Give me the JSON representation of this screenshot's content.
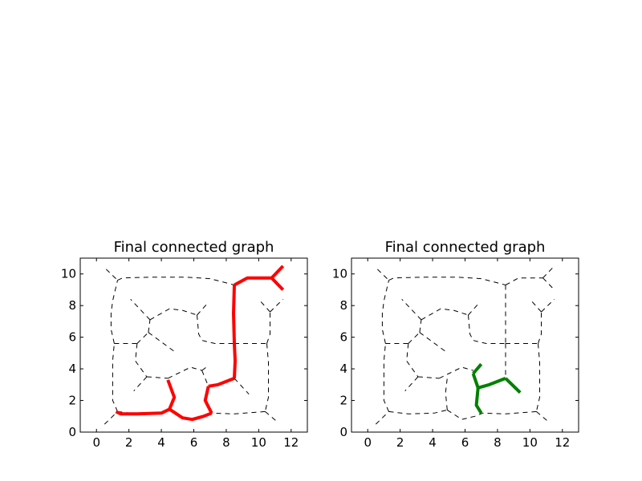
{
  "chart_data": [
    {
      "type": "line",
      "title": "Final connected graph",
      "xlim": [
        -1,
        13
      ],
      "ylim": [
        0,
        11
      ],
      "xticks": [
        0,
        2,
        4,
        6,
        8,
        10,
        12
      ],
      "yticks": [
        0,
        2,
        4,
        6,
        8,
        10
      ],
      "background_edges": [
        [
          [
            0.5,
            0.5
          ],
          [
            1.3,
            1.3
          ]
        ],
        [
          [
            1.3,
            1.3
          ],
          [
            2.5,
            1.15
          ],
          [
            4.1,
            1.2
          ],
          [
            4.3,
            1.4
          ]
        ],
        [
          [
            1.3,
            1.3
          ],
          [
            1,
            2
          ],
          [
            1,
            3.5
          ],
          [
            1,
            4.5
          ],
          [
            1.1,
            5.6
          ]
        ],
        [
          [
            1.1,
            5.6
          ],
          [
            0.9,
            6.5
          ],
          [
            0.9,
            7.5
          ],
          [
            1.0,
            8.3
          ],
          [
            1.3,
            9.6
          ]
        ],
        [
          [
            1.3,
            9.6
          ],
          [
            1.6,
            9.75
          ],
          [
            3.5,
            9.8
          ],
          [
            5.5,
            9.8
          ],
          [
            7.0,
            9.7
          ],
          [
            8.5,
            9.3
          ]
        ],
        [
          [
            0.6,
            10.3
          ],
          [
            1.3,
            9.6
          ]
        ],
        [
          [
            1.1,
            5.6
          ],
          [
            2.5,
            5.6
          ]
        ],
        [
          [
            2.5,
            5.6
          ],
          [
            2.4,
            4.5
          ],
          [
            3.1,
            3.5
          ]
        ],
        [
          [
            3.1,
            3.5
          ],
          [
            2.3,
            2.6
          ]
        ],
        [
          [
            3.1,
            3.5
          ],
          [
            4.4,
            3.4
          ]
        ],
        [
          [
            4.4,
            3.4
          ],
          [
            5.0,
            3.7
          ],
          [
            5.8,
            4.1
          ],
          [
            6.5,
            3.9
          ]
        ],
        [
          [
            6.5,
            3.9
          ],
          [
            6.9,
            4.2
          ]
        ],
        [
          [
            6.5,
            3.9
          ],
          [
            6.9,
            2.9
          ]
        ],
        [
          [
            2.5,
            5.6
          ],
          [
            3.2,
            6.3
          ]
        ],
        [
          [
            3.2,
            6.3
          ],
          [
            4.8,
            5.1
          ]
        ],
        [
          [
            3.2,
            6.3
          ],
          [
            3.3,
            7.1
          ]
        ],
        [
          [
            3.3,
            7.1
          ],
          [
            2.1,
            8.4
          ]
        ],
        [
          [
            3.3,
            7.1
          ],
          [
            4.5,
            7.8
          ],
          [
            5.3,
            7.7
          ],
          [
            6.2,
            7.4
          ]
        ],
        [
          [
            6.2,
            7.4
          ],
          [
            6.9,
            8.2
          ]
        ],
        [
          [
            6.2,
            7.4
          ],
          [
            6.3,
            6.2
          ],
          [
            6.5,
            5.8
          ],
          [
            7.3,
            5.6
          ],
          [
            8.5,
            5.6
          ]
        ],
        [
          [
            8.5,
            5.6
          ],
          [
            10.5,
            5.6
          ]
        ],
        [
          [
            10.5,
            5.6
          ],
          [
            10.6,
            4.4
          ],
          [
            10.6,
            2.2
          ],
          [
            10.4,
            1.3
          ]
        ],
        [
          [
            10.4,
            1.3
          ],
          [
            11.2,
            0.6
          ]
        ],
        [
          [
            10.4,
            1.3
          ],
          [
            8.5,
            1.15
          ],
          [
            7.1,
            1.2
          ]
        ],
        [
          [
            10.5,
            5.6
          ],
          [
            10.7,
            6.2
          ],
          [
            10.7,
            7.6
          ]
        ],
        [
          [
            10.7,
            7.6
          ],
          [
            10,
            8.4
          ]
        ],
        [
          [
            10.7,
            7.6
          ],
          [
            11.5,
            8.4
          ]
        ],
        [
          [
            8.5,
            3.4
          ],
          [
            9.4,
            2.4
          ]
        ]
      ],
      "highlight_color": "#ff0000",
      "highlight_edges": [
        [
          [
            1.2,
            1.3
          ],
          [
            1.5,
            1.15
          ],
          [
            2.5,
            1.15
          ],
          [
            4.0,
            1.2
          ],
          [
            4.5,
            1.45
          ]
        ],
        [
          [
            4.5,
            1.45
          ],
          [
            4.8,
            2.2
          ],
          [
            4.4,
            3.3
          ]
        ],
        [
          [
            4.5,
            1.45
          ],
          [
            5.3,
            0.9
          ],
          [
            5.9,
            0.8
          ],
          [
            6.6,
            1.0
          ],
          [
            7.1,
            1.2
          ]
        ],
        [
          [
            7.1,
            1.2
          ],
          [
            6.7,
            2.0
          ],
          [
            6.9,
            2.9
          ]
        ],
        [
          [
            6.9,
            2.9
          ],
          [
            7.5,
            3.0
          ],
          [
            8.5,
            3.4
          ]
        ],
        [
          [
            8.5,
            3.4
          ],
          [
            8.55,
            4.5
          ],
          [
            8.5,
            5.6
          ],
          [
            8.45,
            7.5
          ],
          [
            8.5,
            9.3
          ]
        ],
        [
          [
            8.5,
            9.3
          ],
          [
            9.3,
            9.75
          ],
          [
            10.8,
            9.75
          ]
        ],
        [
          [
            10.8,
            9.75
          ],
          [
            11.5,
            10.5
          ]
        ],
        [
          [
            10.8,
            9.75
          ],
          [
            11.5,
            9.0
          ]
        ]
      ]
    },
    {
      "type": "line",
      "title": "Final connected graph",
      "xlim": [
        -1,
        13
      ],
      "ylim": [
        0,
        11
      ],
      "xticks": [
        0,
        2,
        4,
        6,
        8,
        10,
        12
      ],
      "yticks": [
        0,
        2,
        4,
        6,
        8,
        10
      ],
      "background_edges": [
        [
          [
            0.5,
            0.5
          ],
          [
            1.3,
            1.3
          ]
        ],
        [
          [
            1.3,
            1.3
          ],
          [
            2.5,
            1.15
          ],
          [
            4.1,
            1.2
          ],
          [
            4.9,
            1.4
          ]
        ],
        [
          [
            4.9,
            1.4
          ],
          [
            4.8,
            2.5
          ],
          [
            4.9,
            3.4
          ]
        ],
        [
          [
            4.9,
            1.4
          ],
          [
            5.8,
            0.8
          ],
          [
            6.6,
            1.0
          ],
          [
            7.1,
            1.2
          ]
        ],
        [
          [
            1.3,
            1.3
          ],
          [
            1,
            2
          ],
          [
            1,
            3.5
          ],
          [
            1,
            4.5
          ],
          [
            1.1,
            5.6
          ]
        ],
        [
          [
            1.1,
            5.6
          ],
          [
            0.9,
            6.5
          ],
          [
            0.9,
            7.5
          ],
          [
            1.0,
            8.3
          ],
          [
            1.3,
            9.6
          ]
        ],
        [
          [
            1.3,
            9.6
          ],
          [
            1.6,
            9.75
          ],
          [
            3.5,
            9.8
          ],
          [
            5.5,
            9.8
          ],
          [
            7.0,
            9.7
          ],
          [
            8.5,
            9.3
          ]
        ],
        [
          [
            0.6,
            10.3
          ],
          [
            1.3,
            9.6
          ]
        ],
        [
          [
            1.1,
            5.6
          ],
          [
            2.5,
            5.6
          ]
        ],
        [
          [
            2.5,
            5.6
          ],
          [
            2.4,
            4.5
          ],
          [
            3.1,
            3.5
          ]
        ],
        [
          [
            3.1,
            3.5
          ],
          [
            2.3,
            2.6
          ]
        ],
        [
          [
            3.1,
            3.5
          ],
          [
            4.4,
            3.4
          ]
        ],
        [
          [
            4.4,
            3.4
          ],
          [
            5.0,
            3.7
          ],
          [
            5.8,
            4.1
          ],
          [
            6.5,
            3.9
          ]
        ],
        [
          [
            2.5,
            5.6
          ],
          [
            3.2,
            6.3
          ]
        ],
        [
          [
            3.2,
            6.3
          ],
          [
            4.8,
            5.1
          ]
        ],
        [
          [
            3.2,
            6.3
          ],
          [
            3.3,
            7.1
          ]
        ],
        [
          [
            3.3,
            7.1
          ],
          [
            2.1,
            8.4
          ]
        ],
        [
          [
            3.3,
            7.1
          ],
          [
            4.5,
            7.8
          ],
          [
            5.3,
            7.7
          ],
          [
            6.2,
            7.4
          ]
        ],
        [
          [
            6.2,
            7.4
          ],
          [
            6.9,
            8.2
          ]
        ],
        [
          [
            6.2,
            7.4
          ],
          [
            6.3,
            6.2
          ],
          [
            6.5,
            5.8
          ],
          [
            7.3,
            5.6
          ],
          [
            8.5,
            5.6
          ]
        ],
        [
          [
            8.5,
            9.3
          ],
          [
            8.5,
            7.5
          ],
          [
            8.5,
            5.6
          ]
        ],
        [
          [
            8.5,
            5.6
          ],
          [
            8.5,
            3.4
          ]
        ],
        [
          [
            8.5,
            9.3
          ],
          [
            9.3,
            9.75
          ],
          [
            10.8,
            9.75
          ]
        ],
        [
          [
            10.8,
            9.75
          ],
          [
            11.5,
            10.5
          ]
        ],
        [
          [
            10.8,
            9.75
          ],
          [
            11.5,
            9.0
          ]
        ],
        [
          [
            8.5,
            5.6
          ],
          [
            10.5,
            5.6
          ]
        ],
        [
          [
            10.5,
            5.6
          ],
          [
            10.6,
            4.4
          ],
          [
            10.6,
            2.2
          ],
          [
            10.4,
            1.3
          ]
        ],
        [
          [
            10.4,
            1.3
          ],
          [
            11.2,
            0.6
          ]
        ],
        [
          [
            10.4,
            1.3
          ],
          [
            8.5,
            1.15
          ],
          [
            7.1,
            1.2
          ]
        ],
        [
          [
            10.5,
            5.6
          ],
          [
            10.7,
            6.2
          ],
          [
            10.7,
            7.6
          ]
        ],
        [
          [
            10.7,
            7.6
          ],
          [
            10,
            8.4
          ]
        ],
        [
          [
            10.7,
            7.6
          ],
          [
            11.5,
            8.4
          ]
        ]
      ],
      "highlight_color": "#008000",
      "highlight_edges": [
        [
          [
            7.0,
            1.2
          ],
          [
            6.7,
            1.7
          ],
          [
            6.8,
            2.8
          ]
        ],
        [
          [
            6.8,
            2.8
          ],
          [
            6.5,
            3.7
          ]
        ],
        [
          [
            6.5,
            3.7
          ],
          [
            7.0,
            4.3
          ]
        ],
        [
          [
            6.8,
            2.8
          ],
          [
            7.5,
            3.0
          ],
          [
            8.5,
            3.4
          ]
        ],
        [
          [
            8.5,
            3.4
          ],
          [
            9.4,
            2.5
          ]
        ]
      ]
    }
  ]
}
